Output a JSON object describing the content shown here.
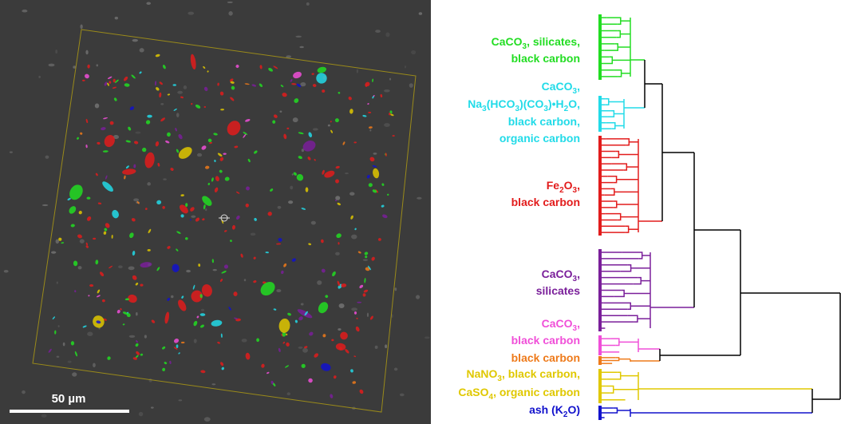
{
  "scale_bar": "50 µm",
  "clusters": [
    {
      "color": "#22dd22",
      "label": [
        [
          {
            "text": "CaCO"
          },
          {
            "sub": "3"
          },
          {
            "text": ", silicates,"
          }
        ],
        [
          {
            "text": "black carbon"
          }
        ]
      ]
    },
    {
      "color": "#22dbe8",
      "label": [
        [
          {
            "text": "CaCO"
          },
          {
            "sub": "3"
          },
          {
            "text": ","
          }
        ],
        [
          {
            "text": "Na"
          },
          {
            "sub": "3"
          },
          {
            "text": "(HCO"
          },
          {
            "sub": "3"
          },
          {
            "text": ")(CO"
          },
          {
            "sub": "3"
          },
          {
            "text": ")•H"
          },
          {
            "sub": "2"
          },
          {
            "text": "O,"
          }
        ],
        [
          {
            "text": "black carbon,"
          }
        ],
        [
          {
            "text": "organic carbon"
          }
        ]
      ]
    },
    {
      "color": "#e21c1c",
      "label": [
        [
          {
            "text": "Fe"
          },
          {
            "sub": "2"
          },
          {
            "text": "O"
          },
          {
            "sub": "3"
          },
          {
            "text": ","
          }
        ],
        [
          {
            "text": "black carbon"
          }
        ]
      ]
    },
    {
      "color": "#7a1f9a",
      "label": [
        [
          {
            "text": "CaCO"
          },
          {
            "sub": "3"
          },
          {
            "text": ","
          }
        ],
        [
          {
            "text": "silicates"
          }
        ]
      ]
    },
    {
      "color": "#f04fd8",
      "label": [
        [
          {
            "text": "CaCO"
          },
          {
            "sub": "3"
          },
          {
            "text": ","
          }
        ],
        [
          {
            "text": "black carbon"
          }
        ]
      ]
    },
    {
      "color": "#ee7a1a",
      "label": [
        [
          {
            "text": "black carbon"
          }
        ]
      ]
    },
    {
      "color": "#e0c800",
      "label": [
        [
          {
            "text": "NaNO"
          },
          {
            "sub": "3"
          },
          {
            "text": ", black carbon,"
          }
        ],
        [
          {
            "text": "CaSO"
          },
          {
            "sub": "4"
          },
          {
            "text": ", organic carbon"
          }
        ]
      ]
    },
    {
      "color": "#1212cc",
      "label": [
        [
          {
            "text": "ash (K"
          },
          {
            "sub": "2"
          },
          {
            "text": "O)"
          }
        ]
      ]
    }
  ]
}
